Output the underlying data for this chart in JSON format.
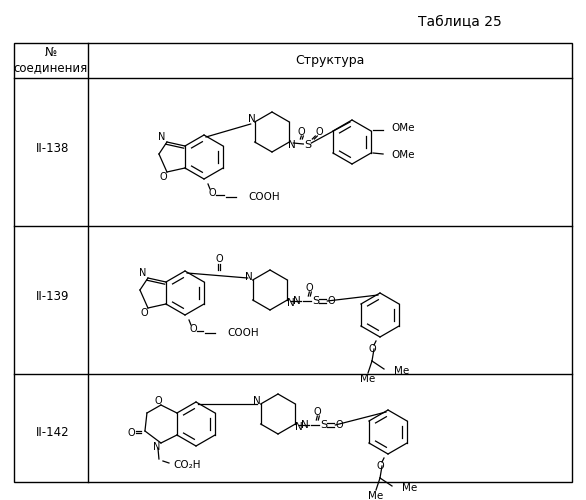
{
  "title": "Таблица 25",
  "col1_header": "№\nсоединения",
  "col2_header": "Структура",
  "row_ids": [
    "II-138",
    "II-139",
    "II-142"
  ],
  "background": "#ffffff",
  "border_color": "#000000",
  "text_color": "#000000",
  "title_fontsize": 10,
  "header_fontsize": 9,
  "id_fontsize": 9
}
